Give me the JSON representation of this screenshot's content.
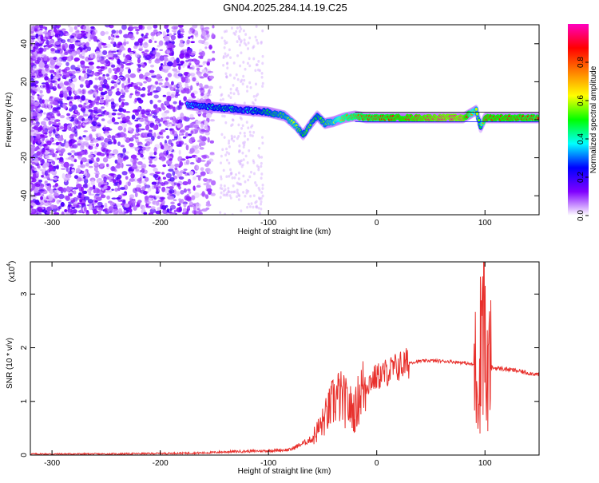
{
  "title": "GN04.2025.284.14.19.C25",
  "colorbar": {
    "label": "Normalized spectral amplitude",
    "ticks": [
      0.0,
      0.2,
      0.4,
      0.6,
      0.8
    ],
    "tick_labels": [
      "0.0",
      "0.2",
      "0.4",
      "0.6",
      "0.8"
    ],
    "range": [
      0,
      1
    ],
    "colormap": [
      "#ffffff",
      "#8000ff",
      "#0000ff",
      "#00ffff",
      "#00ff00",
      "#ffff00",
      "#ff8000",
      "#ff0000",
      "#ff00c0"
    ]
  },
  "chart_data": [
    {
      "type": "heatmap",
      "xlabel": "Height of straight line (km)",
      "ylabel": "Frequency (Hz)",
      "xlim": [
        -320,
        150
      ],
      "ylim": [
        -50,
        50
      ],
      "xticks": [
        -300,
        -200,
        -100,
        0,
        100
      ],
      "yticks": [
        -40,
        -20,
        0,
        20,
        40
      ],
      "xtick_labels": [
        "-300",
        "-200",
        "-100",
        "0",
        "100"
      ],
      "ytick_labels": [
        "-40",
        "-20",
        "0",
        "20",
        "40"
      ],
      "trace": {
        "x": [
          -175,
          -160,
          -140,
          -120,
          -100,
          -85,
          -75,
          -68,
          -62,
          -55,
          -48,
          -40,
          -30,
          -20,
          -10,
          0,
          20,
          40,
          60,
          80,
          92,
          96,
          100,
          120,
          150
        ],
        "y": [
          8,
          7,
          6,
          5,
          4,
          2,
          -3,
          -8,
          -3,
          2,
          -2,
          -1,
          1,
          2,
          1,
          1,
          1,
          1,
          1,
          1,
          5,
          -4,
          1,
          1,
          1
        ],
        "amplitude": [
          0.35,
          0.4,
          0.45,
          0.4,
          0.5,
          0.55,
          0.6,
          0.5,
          0.55,
          0.5,
          0.55,
          0.6,
          0.75,
          0.8,
          0.85,
          0.85,
          0.9,
          0.95,
          1.0,
          1.0,
          0.6,
          0.5,
          0.9,
          0.9,
          0.85
        ]
      }
    },
    {
      "type": "line",
      "xlabel": "Height of straight line (km)",
      "ylabel": "SNR (10 * v/v)",
      "yscale_label": "(x10",
      "yscale_exp": "4",
      "xlim": [
        -320,
        150
      ],
      "ylim": [
        0,
        3.6
      ],
      "xticks": [
        -300,
        -200,
        -100,
        0,
        100
      ],
      "yticks": [
        0,
        1,
        2,
        3
      ],
      "xtick_labels": [
        "-300",
        "-200",
        "-100",
        "0",
        "100"
      ],
      "ytick_labels": [
        "0",
        "1",
        "2",
        "3"
      ],
      "color": "#e8302c",
      "series": [
        {
          "x": [
            -320,
            -250,
            -200,
            -160,
            -140,
            -120,
            -100,
            -80,
            -70,
            -60,
            -50,
            -45,
            -40,
            -35,
            -30,
            -25,
            -20,
            -15,
            -10,
            -5,
            0,
            10,
            20,
            30,
            40,
            50,
            60,
            70,
            80,
            85,
            90,
            95,
            97,
            99,
            101,
            103,
            105,
            110,
            120,
            130,
            140,
            150
          ],
          "y": [
            0.02,
            0.02,
            0.03,
            0.04,
            0.06,
            0.07,
            0.08,
            0.1,
            0.2,
            0.3,
            0.6,
            0.8,
            1.0,
            1.1,
            1.0,
            0.9,
            0.8,
            1.2,
            1.3,
            1.4,
            1.45,
            1.55,
            1.65,
            1.72,
            1.75,
            1.76,
            1.75,
            1.74,
            1.72,
            1.7,
            1.68,
            1.4,
            2.8,
            3.5,
            1.0,
            1.6,
            1.63,
            1.62,
            1.6,
            1.57,
            1.53,
            1.5
          ]
        }
      ]
    }
  ]
}
